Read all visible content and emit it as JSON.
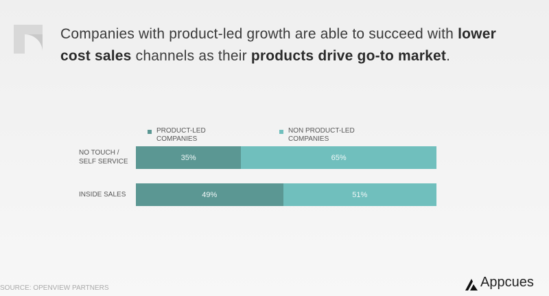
{
  "chart_data": {
    "type": "stacked-bar-horizontal",
    "title_parts": [
      {
        "text": "Companies with product-led growth are able to succeed with",
        "bold": false
      },
      {
        "text": "lower cost sales",
        "bold": true
      },
      {
        "text": "channels as their",
        "bold": false
      },
      {
        "text": "products drive go-to market",
        "bold": true
      },
      {
        "text": ".",
        "bold": false
      }
    ],
    "categories": [
      "NO TOUCH / SELF SERVICE",
      "INSIDE SALES"
    ],
    "series": [
      {
        "name": "PRODUCT-LED COMPANIES",
        "color": "#5b9793",
        "values": [
          35,
          49
        ],
        "value_labels": [
          "35%",
          "49%"
        ]
      },
      {
        "name": "NON PRODUCT-LED COMPANIES",
        "color": "#70bfbd",
        "values": [
          65,
          51
        ],
        "value_labels": [
          "65%",
          "51%"
        ]
      }
    ],
    "xlim": [
      0,
      100
    ],
    "source": "SOURCE: OPENVIEW PARTNERS",
    "brand": "Appcues"
  }
}
